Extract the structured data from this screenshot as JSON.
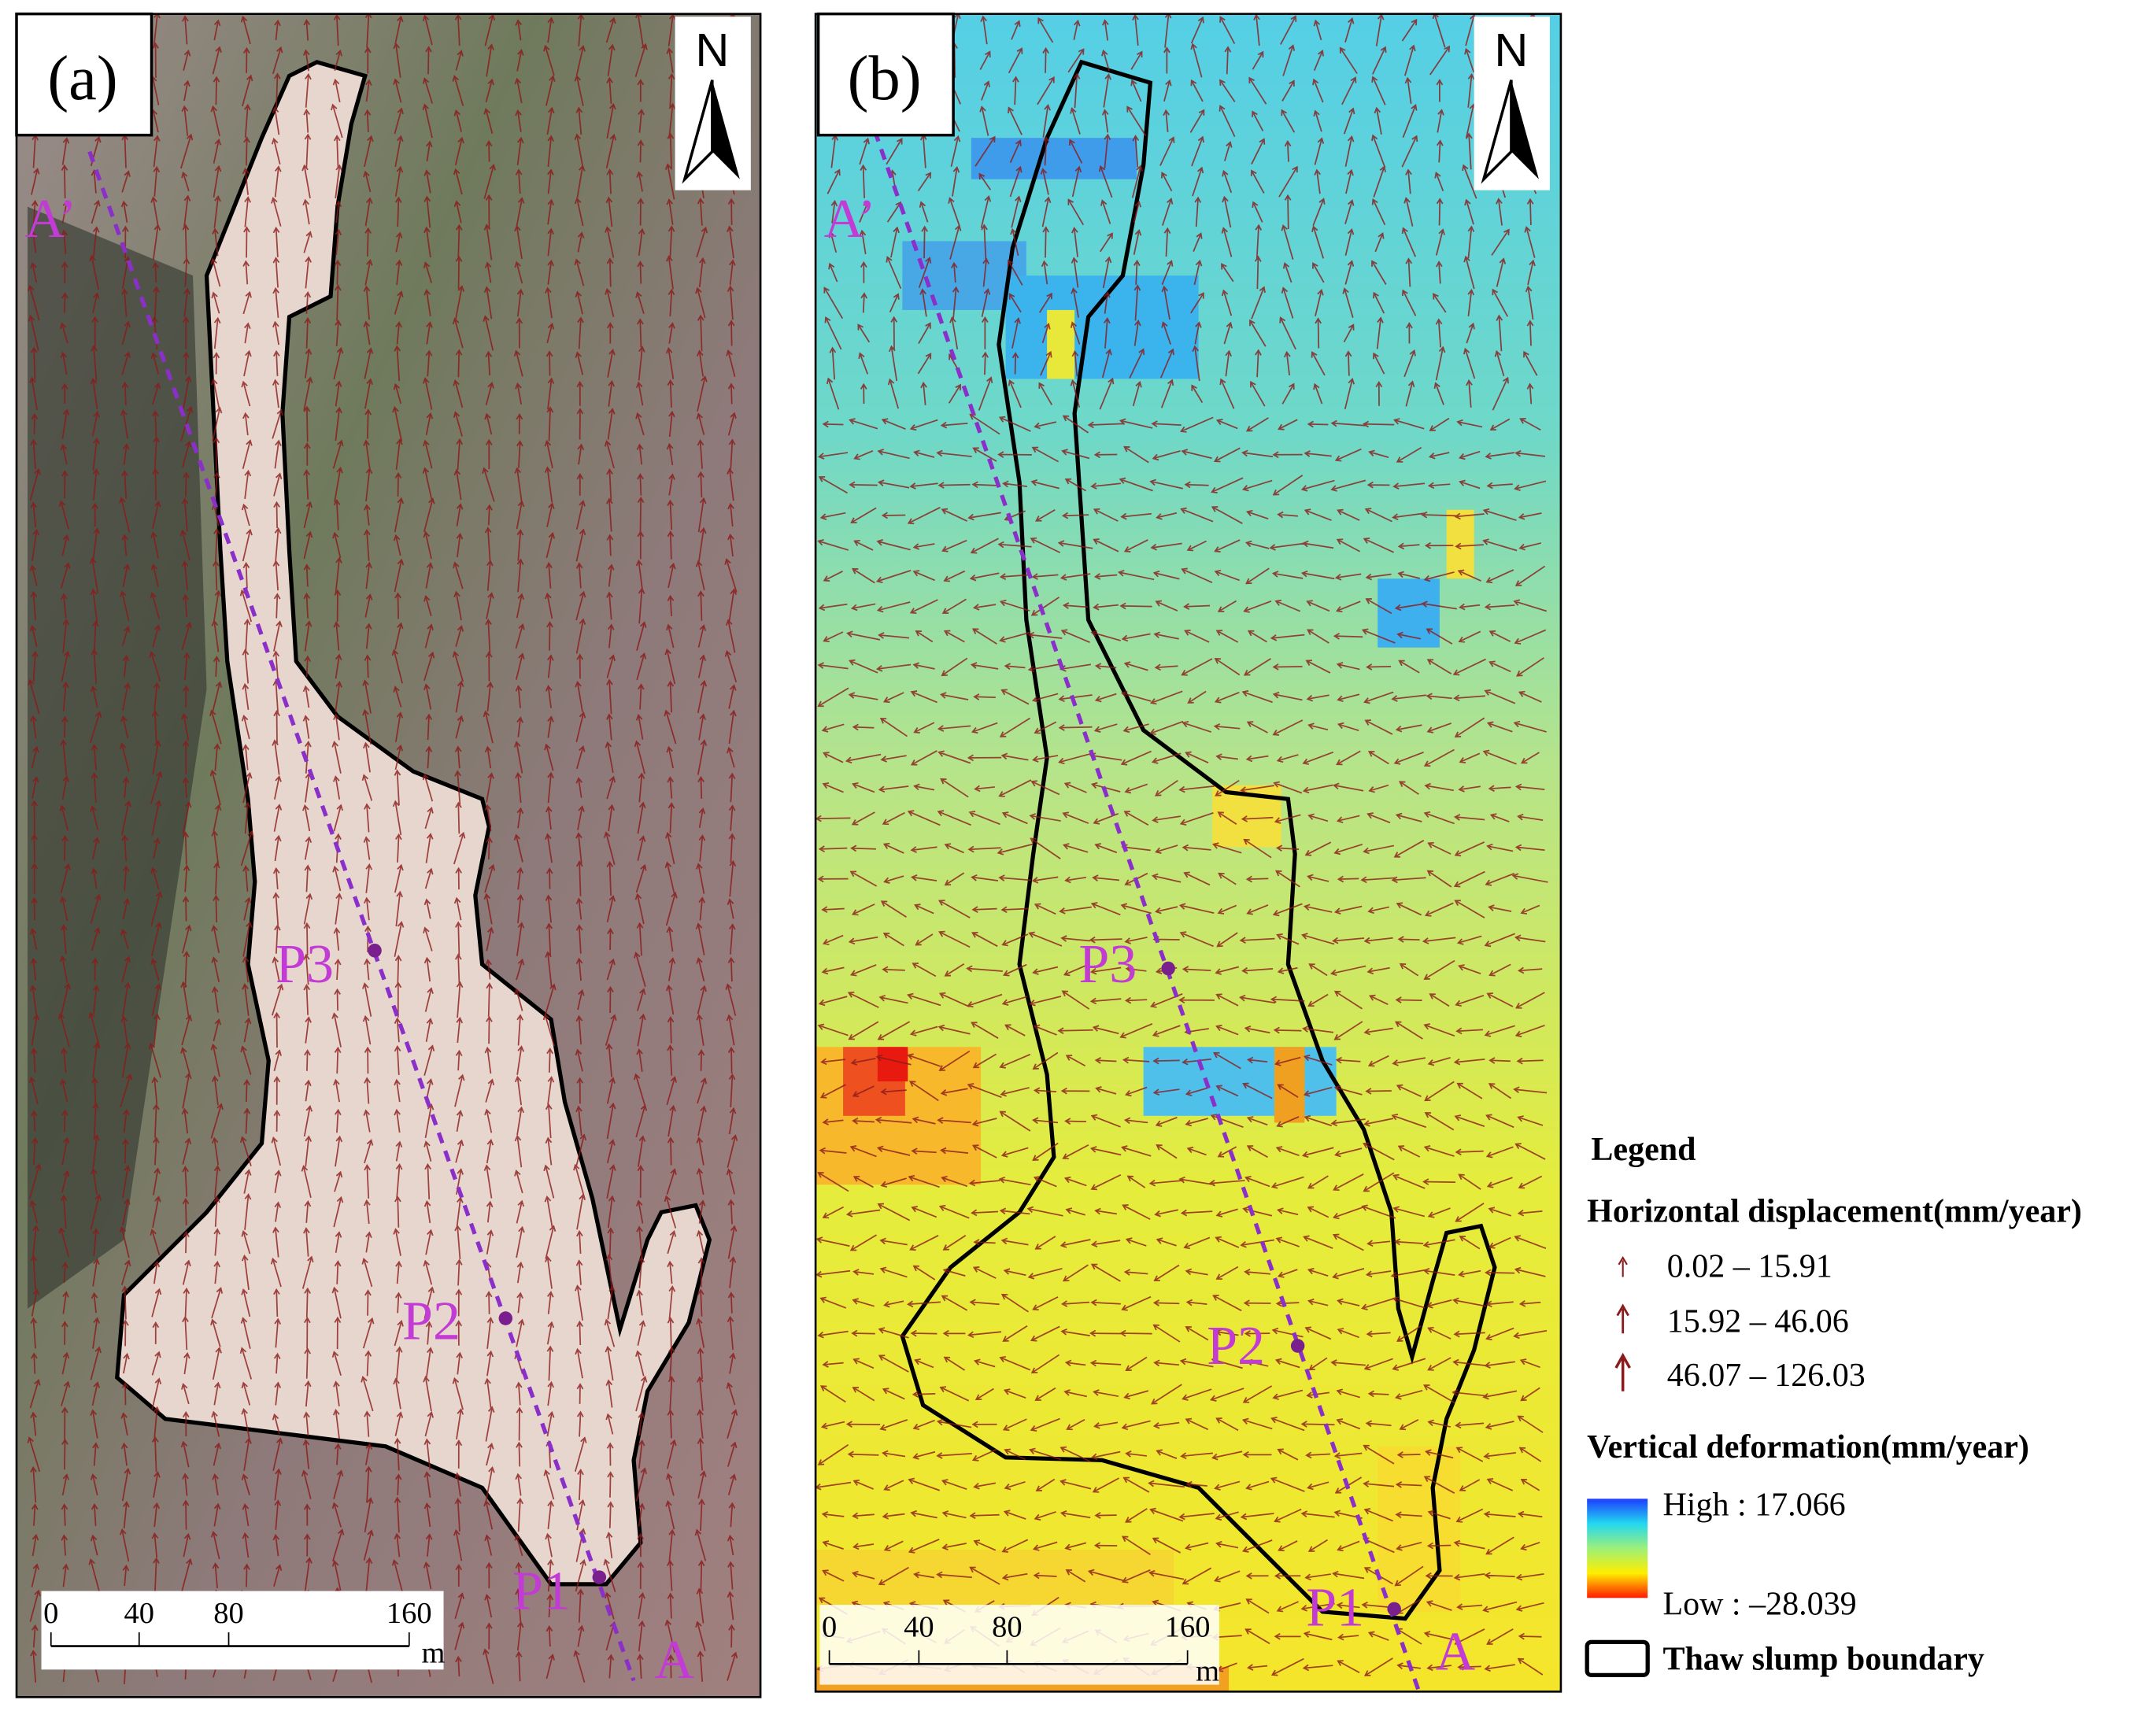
{
  "panels": [
    {
      "label": "(a)",
      "north": "N",
      "profile_start": "A’",
      "profile_end": "A",
      "points": [
        "P3",
        "P2",
        "P1"
      ],
      "scale_bar": {
        "ticks": [
          0,
          40,
          80,
          160
        ],
        "unit": "m"
      }
    },
    {
      "label": "(b)",
      "north": "N",
      "profile_start": "A’",
      "profile_end": "A",
      "points": [
        "P3",
        "P2",
        "P1"
      ],
      "scale_bar": {
        "ticks": [
          0,
          40,
          80,
          160
        ],
        "unit": "m"
      }
    }
  ],
  "legend": {
    "title": "Legend",
    "horizontal_displacement": {
      "title": "Horizontal displacement(mm/year)",
      "classes": [
        "0.02 – 15.91",
        "15.92 – 46.06",
        "46.07 – 126.03"
      ]
    },
    "vertical_deformation": {
      "title": "Vertical deformation(mm/year)",
      "high": "High : 17.066",
      "low": "Low : –28.039"
    },
    "boundary": "Thaw slump boundary"
  }
}
